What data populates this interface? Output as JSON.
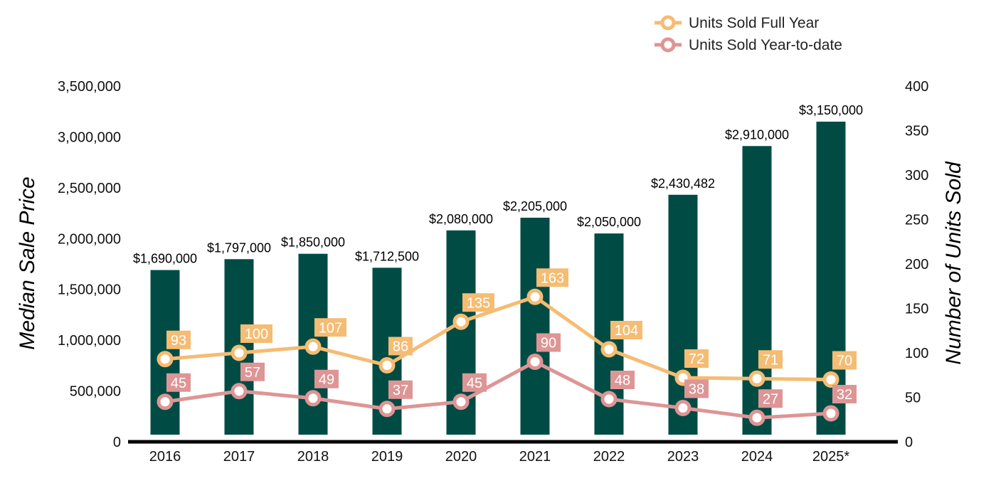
{
  "chart_data": {
    "type": "bar",
    "categories": [
      "2016",
      "2017",
      "2018",
      "2019",
      "2020",
      "2021",
      "2022",
      "2023",
      "2024",
      "2025*"
    ],
    "values": [
      1690000,
      1797000,
      1850000,
      1712500,
      2080000,
      2205000,
      2050000,
      2430482,
      2910000,
      3150000
    ],
    "value_labels": [
      "$1,690,000",
      "$1,797,000",
      "$1,850,000",
      "$1,712,500",
      "$2,080,000",
      "$2,205,000",
      "$2,050,000",
      "$2,430,482",
      "$2,910,000",
      "$3,150,000"
    ],
    "ylabel": "Median Sale Price",
    "y2label": "Number of Units Sold",
    "ylim": [
      0,
      3500000
    ],
    "y2lim": [
      0,
      400
    ],
    "y_ticks": [
      "0",
      "500,000",
      "1,000,000",
      "1,500,000",
      "2,000,000",
      "2,500,000",
      "3,000,000",
      "3,500,000"
    ],
    "y2_ticks": [
      "0",
      "50",
      "100",
      "150",
      "200",
      "250",
      "300",
      "350",
      "400"
    ],
    "grid": false,
    "legend_position": "top-right",
    "series": [
      {
        "name": "Units Sold Full Year",
        "type": "line",
        "axis": "right",
        "values": [
          93,
          100,
          107,
          86,
          135,
          163,
          104,
          72,
          71,
          70
        ]
      },
      {
        "name": "Units Sold Year-to-date",
        "type": "line",
        "axis": "right",
        "values": [
          45,
          57,
          49,
          37,
          45,
          90,
          48,
          38,
          27,
          32
        ]
      }
    ],
    "colors": {
      "bars": "#004c44",
      "full_year": "#f5bc73",
      "ytd": "#de9595",
      "axis": "#000000"
    }
  }
}
